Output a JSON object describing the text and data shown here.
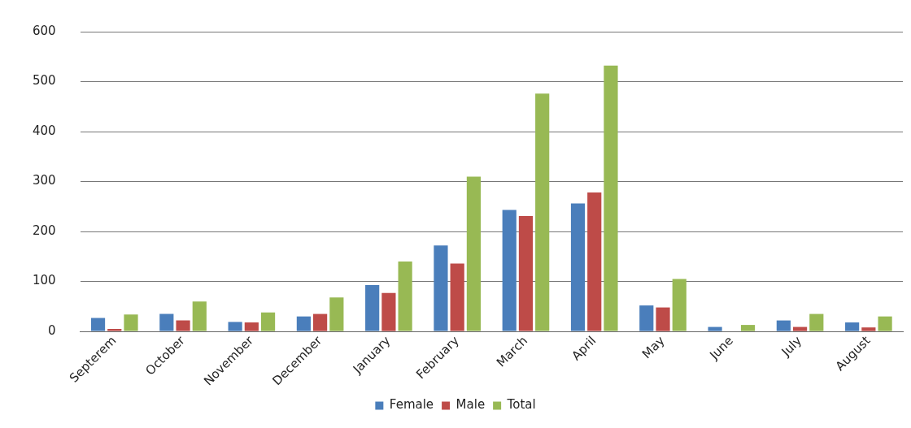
{
  "chart_data": {
    "type": "bar",
    "categories": [
      "Septerem",
      "October",
      "November",
      "December",
      "January",
      "February",
      "March",
      "April",
      "May",
      "June",
      "July",
      "August"
    ],
    "series": [
      {
        "name": "Female",
        "color": "#4a7ebb",
        "values": [
          27,
          35,
          19,
          30,
          93,
          172,
          243,
          256,
          52,
          9,
          22,
          18
        ]
      },
      {
        "name": "Male",
        "color": "#be4b48",
        "values": [
          5,
          22,
          18,
          35,
          77,
          136,
          231,
          278,
          48,
          0,
          9,
          8
        ]
      },
      {
        "name": "Total",
        "color": "#98b954",
        "values": [
          34,
          60,
          38,
          68,
          140,
          310,
          476,
          532,
          105,
          13,
          35,
          30
        ]
      }
    ],
    "ylim": [
      0,
      600
    ],
    "yticks": [
      0,
      100,
      200,
      300,
      400,
      500,
      600
    ],
    "grid": "y",
    "legend": "bottom"
  }
}
